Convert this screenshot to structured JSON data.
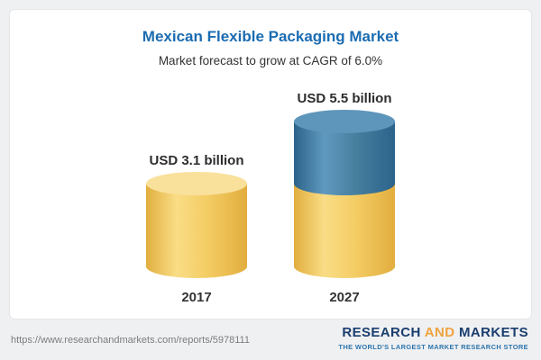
{
  "page": {
    "background_color": "#eff0f2",
    "card_color": "#ffffff"
  },
  "chart_data": {
    "type": "bar",
    "variant": "cylinder",
    "title": "Mexican Flexible Packaging Market",
    "subtitle": "Market forecast to grow at CAGR of 6.0%",
    "categories": [
      "2017",
      "2027"
    ],
    "values": [
      3.1,
      5.5
    ],
    "unit": "USD billion",
    "labels": [
      "USD 3.1 billion",
      "USD 5.5 billion"
    ],
    "xlabel": "",
    "ylabel": "",
    "ylim": [
      0,
      5.5
    ],
    "grid": false,
    "legend": false,
    "colors": {
      "bar_2017": "#f0c95c",
      "bar_2027_growth_segment": "#3d7ba3",
      "bar_2027_base_segment": "#f0c95c",
      "title_accent": "#1b6cb1"
    },
    "notes": "2027 bar stacks the 2017 base value (yellow) with forecast growth (blue)"
  },
  "footer": {
    "url": "https://www.researchandmarkets.com/reports/5978111",
    "logo": {
      "research": "RESEARCH",
      "and": "AND",
      "markets": "MARKETS",
      "tagline": "THE WORLD'S LARGEST MARKET RESEARCH STORE"
    }
  }
}
